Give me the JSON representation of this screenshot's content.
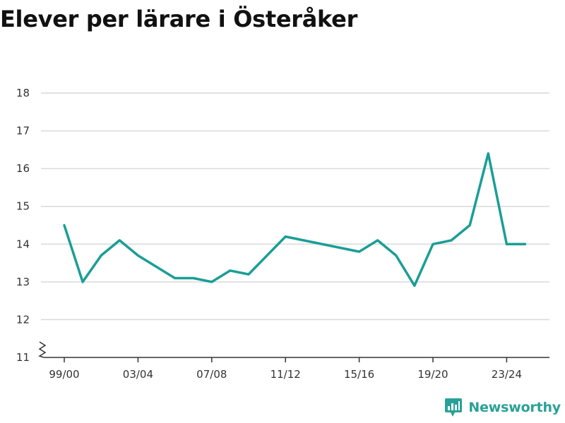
{
  "title": "Elever per lärare i Österåker",
  "brand": {
    "name": "Newsworthy",
    "icon": "newsworthy-logo-icon",
    "color": "#2aa198"
  },
  "chart_data": {
    "type": "line",
    "title": "Elever per lärare i Österåker",
    "xlabel": "",
    "ylabel": "",
    "ylim": [
      11,
      18
    ],
    "yticks": [
      11,
      12,
      13,
      14,
      15,
      16,
      17,
      18
    ],
    "y_axis_break": true,
    "grid": true,
    "line_color": "#1a9e96",
    "x_tick_labels": [
      "99/00",
      "03/04",
      "07/08",
      "11/12",
      "15/16",
      "19/20",
      "23/24"
    ],
    "x_tick_index": [
      0,
      4,
      8,
      12,
      16,
      20,
      24
    ],
    "categories": [
      "99/00",
      "00/01",
      "01/02",
      "02/03",
      "03/04",
      "04/05",
      "05/06",
      "06/07",
      "07/08",
      "08/09",
      "09/10",
      "10/11",
      "11/12",
      "12/13",
      "13/14",
      "14/15",
      "15/16",
      "16/17",
      "17/18",
      "18/19",
      "19/20",
      "20/21",
      "21/22",
      "22/23",
      "23/24",
      "24/25"
    ],
    "values": [
      14.5,
      13.0,
      13.7,
      14.1,
      13.7,
      null,
      13.1,
      13.1,
      13.0,
      13.3,
      13.2,
      null,
      14.2,
      null,
      null,
      null,
      13.8,
      14.1,
      13.7,
      12.9,
      14.0,
      14.1,
      14.5,
      16.4,
      14.0,
      14.0
    ]
  }
}
